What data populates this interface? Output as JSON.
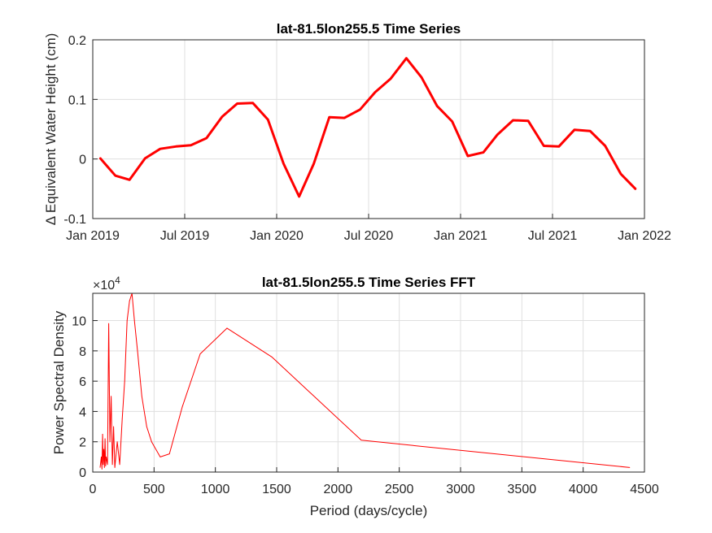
{
  "chart_data": [
    {
      "type": "line",
      "title": "lat-81.5lon255.5 Time Series",
      "ylabel": "Δ Equivalent Water Height (cm)",
      "xlabel": "",
      "x_ticks": [
        "Jan 2019",
        "Jul 2019",
        "Jan 2020",
        "Jul 2020",
        "Jan 2021",
        "Jul 2021",
        "Jan 2022"
      ],
      "x_range": [
        "2019-01-01",
        "2022-01-01"
      ],
      "y_ticks": [
        "-0.1",
        "0",
        "0.1",
        "0.2"
      ],
      "ylim": [
        -0.1,
        0.2
      ],
      "grid": true,
      "series": [
        {
          "color": "#ff0000",
          "points": [
            [
              "2019-01-15",
              0.002
            ],
            [
              "2019-02-15",
              -0.028
            ],
            [
              "2019-03-15",
              -0.035
            ],
            [
              "2019-04-15",
              0.001
            ],
            [
              "2019-05-15",
              0.017
            ],
            [
              "2019-06-15",
              0.021
            ],
            [
              "2019-07-15",
              0.023
            ],
            [
              "2019-08-15",
              0.035
            ],
            [
              "2019-09-15",
              0.071
            ],
            [
              "2019-10-15",
              0.093
            ],
            [
              "2019-11-15",
              0.094
            ],
            [
              "2019-12-15",
              0.066
            ],
            [
              "2020-01-15",
              -0.008
            ],
            [
              "2020-02-15",
              -0.063
            ],
            [
              "2020-03-15",
              -0.008
            ],
            [
              "2020-04-15",
              0.07
            ],
            [
              "2020-05-15",
              0.069
            ],
            [
              "2020-06-15",
              0.083
            ],
            [
              "2020-07-15",
              0.112
            ],
            [
              "2020-08-15",
              0.135
            ],
            [
              "2020-09-15",
              0.169
            ],
            [
              "2020-10-15",
              0.137
            ],
            [
              "2020-11-15",
              0.089
            ],
            [
              "2020-12-15",
              0.063
            ],
            [
              "2021-01-15",
              0.005
            ],
            [
              "2021-02-15",
              0.011
            ],
            [
              "2021-03-15",
              0.041
            ],
            [
              "2021-04-15",
              0.065
            ],
            [
              "2021-05-15",
              0.064
            ],
            [
              "2021-06-15",
              0.022
            ],
            [
              "2021-07-15",
              0.021
            ],
            [
              "2021-08-15",
              0.049
            ],
            [
              "2021-09-15",
              0.047
            ],
            [
              "2021-10-15",
              0.022
            ],
            [
              "2021-11-15",
              -0.025
            ],
            [
              "2021-12-15",
              -0.051
            ]
          ]
        }
      ]
    },
    {
      "type": "line",
      "title": "lat-81.5lon255.5 Time Series FFT",
      "ylabel": "Power Spectral Density",
      "xlabel": "Period (days/cycle)",
      "y_multiplier": "×10",
      "y_multiplier_exp": "4",
      "x_ticks": [
        "0",
        "500",
        "1000",
        "1500",
        "2000",
        "2500",
        "3000",
        "3500",
        "4000",
        "4500"
      ],
      "xlim": [
        0,
        4500
      ],
      "y_ticks": [
        "0",
        "2",
        "4",
        "6",
        "8",
        "10"
      ],
      "ylim": [
        0,
        11.8
      ],
      "grid": true,
      "series": [
        {
          "color": "#ff0000",
          "x": [
            60,
            70,
            75,
            80,
            85,
            90,
            95,
            100,
            105,
            110,
            120,
            130,
            140,
            150,
            160,
            170,
            180,
            200,
            220,
            240,
            260,
            280,
            300,
            320,
            340,
            365,
            400,
            440,
            480,
            550,
            625,
            730,
            876,
            1095,
            1460,
            2190,
            4380
          ],
          "y": [
            0.3,
            1.0,
            0.2,
            2.5,
            0.5,
            1.5,
            0.3,
            2.2,
            0.4,
            1.0,
            0.5,
            9.8,
            2.0,
            5.0,
            0.5,
            3.0,
            0.3,
            2.0,
            0.5,
            3.5,
            6.0,
            10.0,
            11.3,
            11.8,
            10.0,
            8.0,
            5.0,
            3.0,
            2.0,
            1.0,
            1.2,
            4.3,
            7.8,
            9.5,
            7.6,
            2.1,
            0.3
          ]
        }
      ]
    }
  ]
}
